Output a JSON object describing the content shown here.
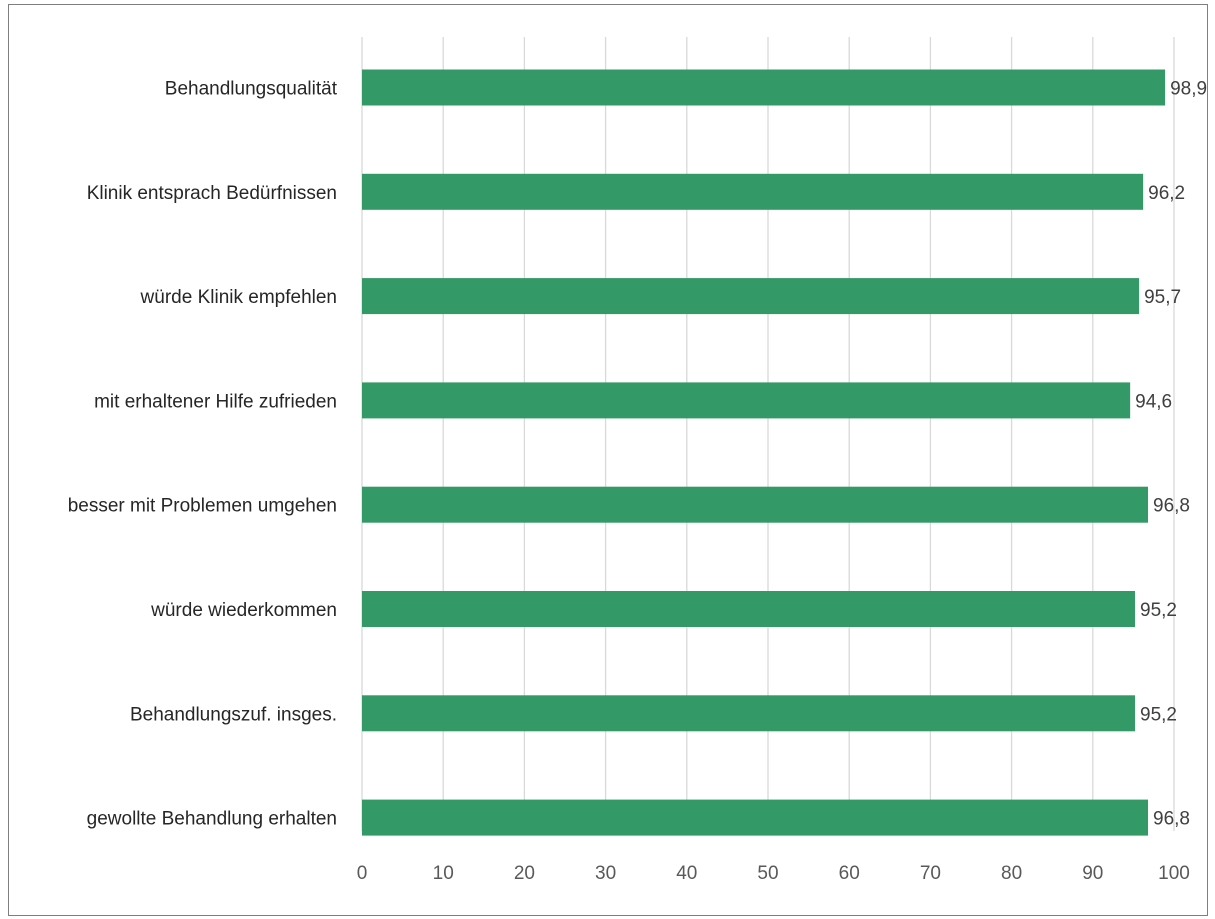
{
  "chart_data": {
    "type": "bar",
    "orientation": "horizontal",
    "title": "",
    "xlabel": "",
    "ylabel": "",
    "categories": [
      "Behandlungsqualität",
      "Klinik entsprach Bedürfnissen",
      "würde Klinik empfehlen",
      "mit erhaltener Hilfe zufrieden",
      "besser mit Problemen umgehen",
      "würde wiederkommen",
      "Behandlungszuf. insges.",
      "gewollte Behandlung erhalten"
    ],
    "values": [
      98.9,
      96.2,
      95.7,
      94.6,
      96.8,
      95.2,
      95.2,
      96.8
    ],
    "value_labels": [
      "98,9",
      "96,2",
      "95,7",
      "94,6",
      "96,8",
      "95,2",
      "95,2",
      "96,8"
    ],
    "xlim": [
      0,
      100
    ],
    "x_ticks": [
      0,
      10,
      20,
      30,
      40,
      50,
      60,
      70,
      80,
      90,
      100
    ],
    "x_tick_labels": [
      "0",
      "10",
      "20",
      "30",
      "40",
      "50",
      "60",
      "70",
      "80",
      "90",
      "100"
    ],
    "grid": true,
    "legend": "none",
    "colors": {
      "bar": "#339966",
      "grid": "#d9d9d9",
      "frame": "#7f7f7f"
    }
  }
}
